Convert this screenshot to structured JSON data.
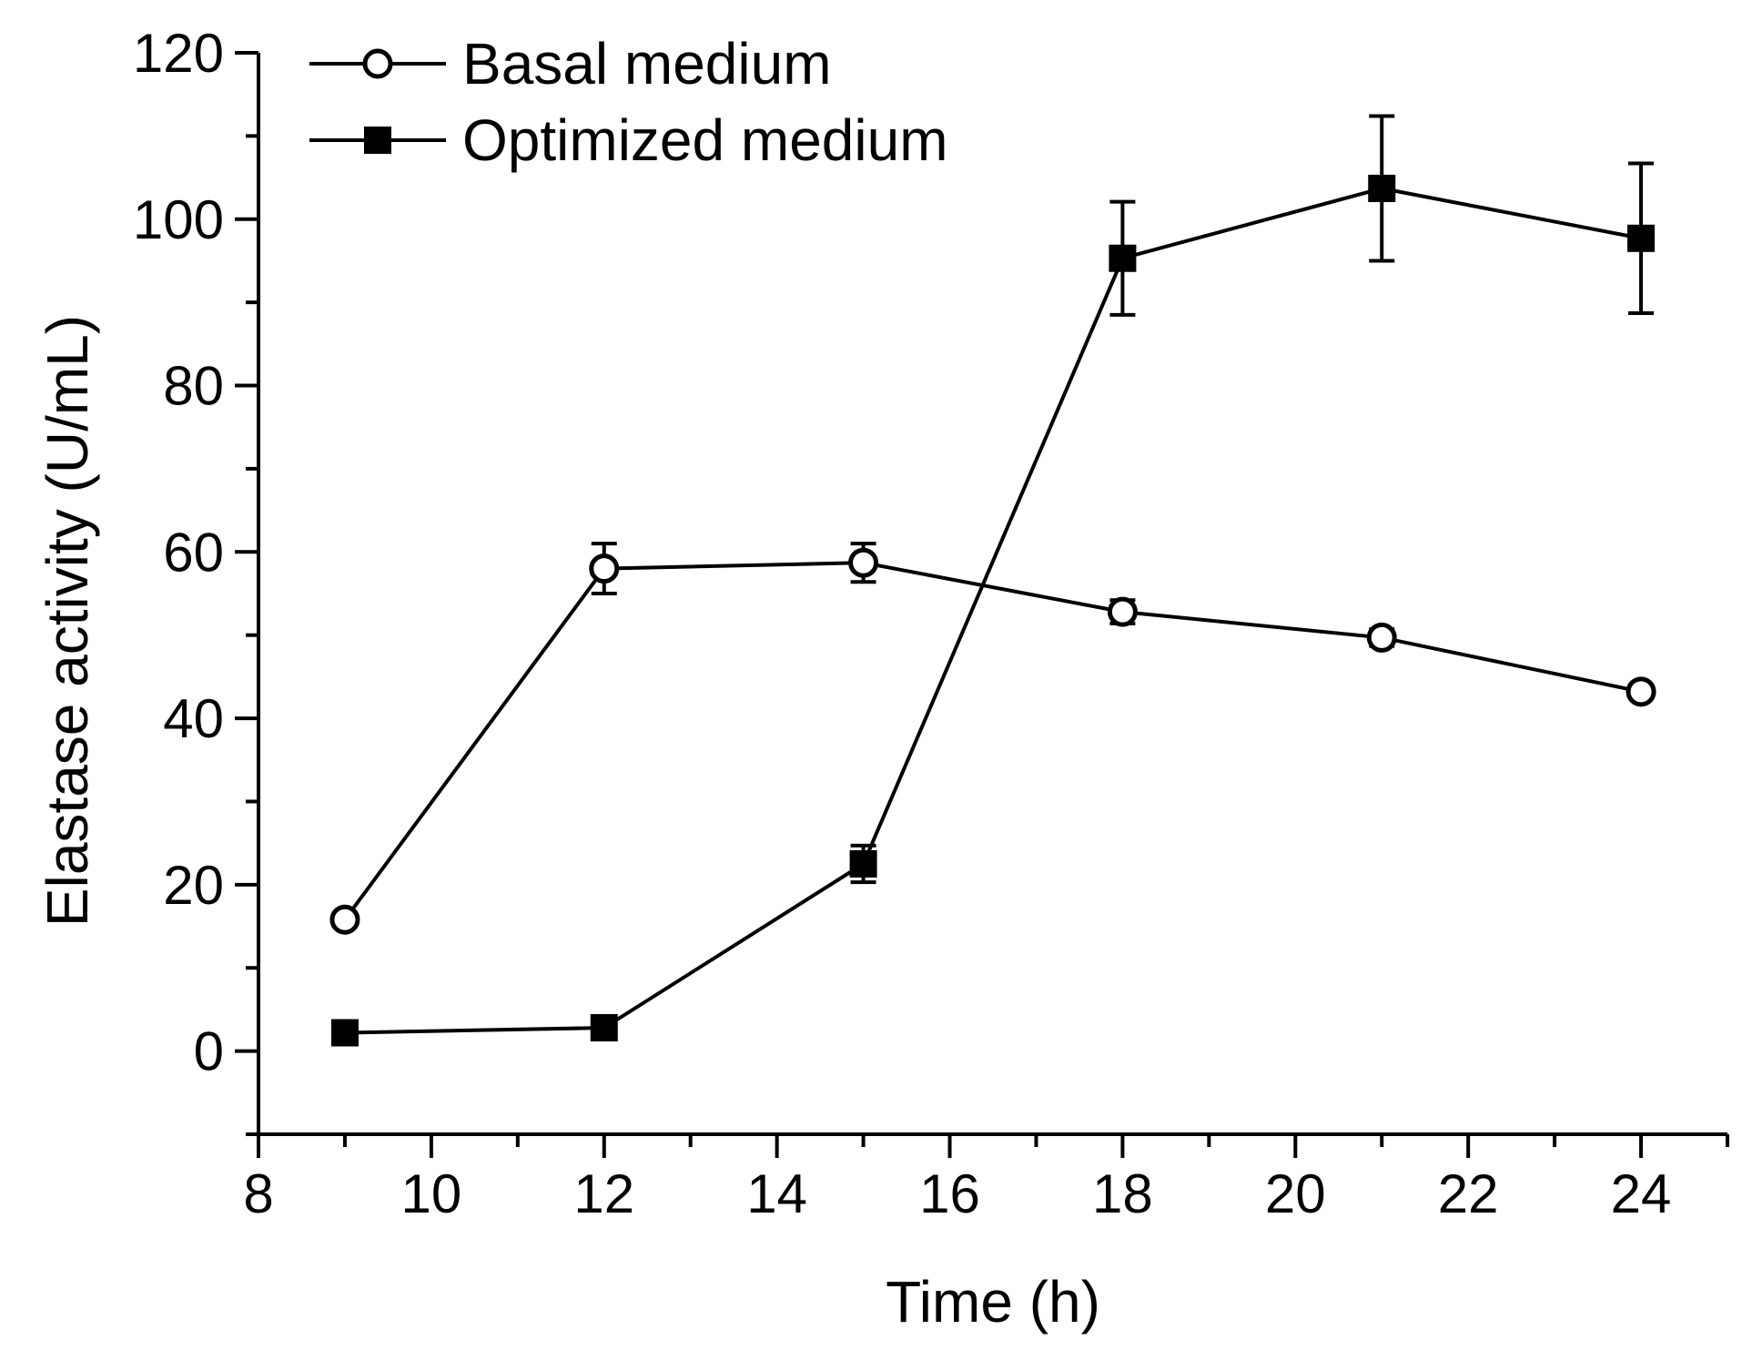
{
  "chart_data": {
    "type": "line",
    "title": "",
    "xlabel": "Time (h)",
    "ylabel": "Elastase activity (U/mL)",
    "xlim": [
      8,
      25
    ],
    "ylim": [
      -10,
      120
    ],
    "xticks": [
      8,
      10,
      12,
      14,
      16,
      18,
      20,
      22,
      24
    ],
    "yticks": [
      0,
      20,
      40,
      60,
      80,
      100,
      120
    ],
    "x": [
      9,
      12,
      15,
      18,
      21,
      24
    ],
    "legend_position": "top-left",
    "series": [
      {
        "name": "Basal medium",
        "marker": "open-circle",
        "values": [
          15.8,
          58.0,
          58.7,
          52.8,
          49.7,
          43.2
        ],
        "errors": [
          0.8,
          3.0,
          2.3,
          1.4,
          1.0,
          0.8
        ]
      },
      {
        "name": "Optimized medium",
        "marker": "filled-square",
        "values": [
          2.2,
          2.8,
          22.5,
          95.3,
          103.7,
          97.7
        ],
        "errors": [
          0.5,
          0.5,
          2.2,
          6.8,
          8.7,
          9.0
        ]
      }
    ]
  }
}
